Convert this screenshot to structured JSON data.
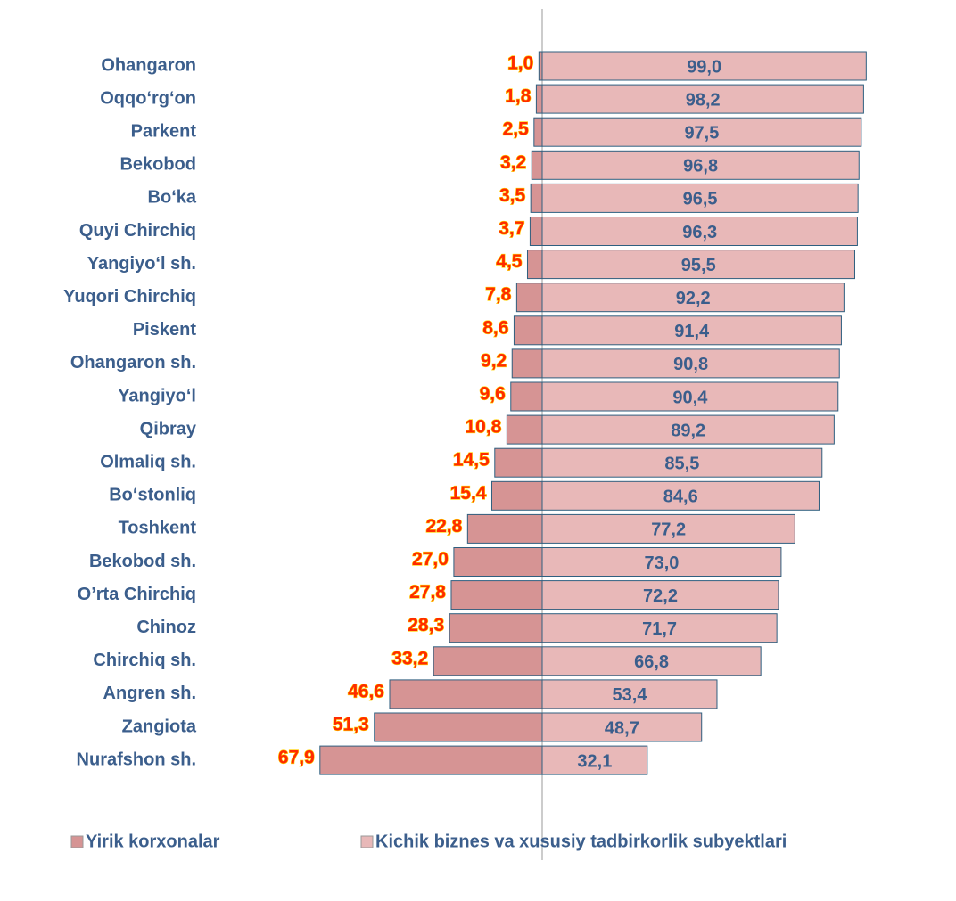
{
  "chart_data": {
    "type": "diverging-bar",
    "categories": [
      "Ohangaron",
      "Oqqo‘rg‘on",
      "Parkent",
      "Bekobod",
      "Bo‘ka",
      "Quyi Chirchiq",
      "Yangiyo‘l sh.",
      "Yuqori Chirchiq",
      "Piskent",
      "Ohangaron sh.",
      "Yangiyo‘l",
      "Qibray",
      "Olmaliq sh.",
      "Bo‘stonliq",
      "Toshkent",
      "Bekobod sh.",
      "O’rta Chirchiq",
      "Chinoz",
      "Chirchiq sh.",
      "Angren sh.",
      "Zangiota",
      "Nurafshon sh."
    ],
    "series": [
      {
        "name": "Yirik korxonalar",
        "color": "#d69494",
        "values": [
          1.0,
          1.8,
          2.5,
          3.2,
          3.5,
          3.7,
          4.5,
          7.8,
          8.6,
          9.2,
          9.6,
          10.8,
          14.5,
          15.4,
          22.8,
          27.0,
          27.8,
          28.3,
          33.2,
          46.6,
          51.3,
          67.9
        ],
        "value_labels": [
          "1,0",
          "1,8",
          "2,5",
          "3,2",
          "3,5",
          "3,7",
          "4,5",
          "7,8",
          "8,6",
          "9,2",
          "9,6",
          "10,8",
          "14,5",
          "15,4",
          "22,8",
          "27,0",
          "27,8",
          "28,3",
          "33,2",
          "46,6",
          "51,3",
          "67,9"
        ]
      },
      {
        "name": "Kichik biznes va xususiy tadbirkorlik subyektlari",
        "color": "#e8b8b8",
        "values": [
          99.0,
          98.2,
          97.5,
          96.8,
          96.5,
          96.3,
          95.5,
          92.2,
          91.4,
          90.8,
          90.4,
          89.2,
          85.5,
          84.6,
          77.2,
          73.0,
          72.2,
          71.7,
          66.8,
          53.4,
          48.7,
          32.1
        ],
        "value_labels": [
          "99,0",
          "98,2",
          "97,5",
          "96,8",
          "96,5",
          "96,3",
          "95,5",
          "92,2",
          "91,4",
          "90,8",
          "90,4",
          "89,2",
          "85,5",
          "84,6",
          "77,2",
          "73,0",
          "72,2",
          "71,7",
          "66,8",
          "53,4",
          "48,7",
          "32,1"
        ]
      }
    ],
    "legend": "bottom"
  }
}
